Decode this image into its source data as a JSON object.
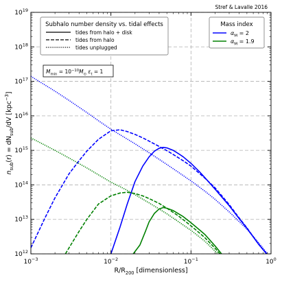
{
  "credit": "Stref & Lavalle 2016",
  "chart_data": {
    "type": "line",
    "title": "",
    "xlabel_parts": [
      {
        "t": "R/R",
        "s": "n"
      },
      {
        "t": "200",
        "s": "sub"
      },
      {
        "t": " [dimensionless]",
        "s": "n"
      }
    ],
    "ylabel_parts": [
      {
        "t": "n",
        "s": "i"
      },
      {
        "t": "sub",
        "s": "sub"
      },
      {
        "t": "(r) = dN",
        "s": "n"
      },
      {
        "t": "sub",
        "s": "sub"
      },
      {
        "t": "/dV [kpc",
        "s": "n"
      },
      {
        "t": "−3",
        "s": "sup"
      },
      {
        "t": "]",
        "s": "n"
      }
    ],
    "xscale": "log",
    "yscale": "log",
    "xlim": [
      0.001,
      1
    ],
    "ylim": [
      1000000000000.0,
      1e+19
    ],
    "grid": true,
    "x_ticks": [
      {
        "value": 0.001,
        "base": "10",
        "exp": "−3"
      },
      {
        "value": 0.01,
        "base": "10",
        "exp": "−2"
      },
      {
        "value": 0.1,
        "base": "10",
        "exp": "−1"
      },
      {
        "value": 1,
        "base": "10",
        "exp": "0"
      }
    ],
    "y_ticks": [
      {
        "value": 1000000000000.0,
        "base": "10",
        "exp": "12"
      },
      {
        "value": 10000000000000.0,
        "base": "10",
        "exp": "13"
      },
      {
        "value": 100000000000000.0,
        "base": "10",
        "exp": "14"
      },
      {
        "value": 1000000000000000.0,
        "base": "10",
        "exp": "15"
      },
      {
        "value": 1e+16,
        "base": "10",
        "exp": "16"
      },
      {
        "value": 1e+17,
        "base": "10",
        "exp": "17"
      },
      {
        "value": 1e+18,
        "base": "10",
        "exp": "18"
      },
      {
        "value": 1e+19,
        "base": "10",
        "exp": "19"
      }
    ],
    "legend_tides": {
      "placement": "top-left",
      "title": "Subhalo number density vs. tidal effects",
      "entries": [
        {
          "label": "tides from halo + disk",
          "dash": "solid"
        },
        {
          "label": "tides from halo",
          "dash": "dashed"
        },
        {
          "label": "tides unplugged",
          "dash": "dotted"
        }
      ]
    },
    "legend_mass": {
      "placement": "top-right",
      "title": "Mass index",
      "entries": [
        {
          "symbol": "α",
          "sub": "M",
          "value": " = 2",
          "color": "#0000ff"
        },
        {
          "symbol": "α",
          "sub": "M",
          "value": " = 1.9",
          "color": "#008000"
        }
      ]
    },
    "annotation": {
      "parts": [
        {
          "t": "M",
          "s": "i"
        },
        {
          "t": "min",
          "s": "sub"
        },
        {
          "t": " = 10",
          "s": "n"
        },
        {
          "t": "−10",
          "s": "sup"
        },
        {
          "t": "M",
          "s": "i"
        },
        {
          "t": "⊙",
          "s": "sub"
        },
        {
          "t": "   ε",
          "s": "i"
        },
        {
          "t": "t",
          "s": "sub"
        },
        {
          "t": " = 1",
          "s": "n"
        }
      ]
    },
    "series": [
      {
        "key": "blue_solid",
        "color": "#0000ff",
        "dash": "solid",
        "x": [
          0.01,
          0.013,
          0.016,
          0.02,
          0.025,
          0.03,
          0.035,
          0.04,
          0.045,
          0.05,
          0.06,
          0.07,
          0.08,
          0.1,
          0.13,
          0.15,
          0.2,
          0.3,
          0.4,
          0.5,
          0.7,
          1.0
        ],
        "y": [
          1000000000000.0,
          6000000000000.0,
          28000000000000.0,
          125000000000000.0,
          350000000000000.0,
          650000000000000.0,
          950000000000000.0,
          1150000000000000.0,
          1220000000000000.0,
          1180000000000000.0,
          1000000000000000.0,
          800000000000000.0,
          650000000000000.0,
          420000000000000.0,
          230000000000000.0,
          160000000000000.0,
          75000000000000.0,
          25000000000000.0,
          10500000000000.0,
          5500000000000.0,
          1900000000000.0,
          700000000000.0
        ]
      },
      {
        "key": "blue_dashed",
        "color": "#0000ff",
        "dash": "dashed",
        "x": [
          0.001,
          0.0015,
          0.002,
          0.003,
          0.004,
          0.005,
          0.007,
          0.01,
          0.013,
          0.016,
          0.02,
          0.025,
          0.03,
          0.04,
          0.05,
          0.06,
          0.08,
          0.1,
          0.15,
          0.2,
          0.3,
          0.4,
          0.5,
          0.7,
          1.0
        ],
        "y": [
          1500000000000.0,
          11000000000000.0,
          42000000000000.0,
          210000000000000.0,
          500000000000000.0,
          950000000000000.0,
          2100000000000000.0,
          3700000000000000.0,
          3950000000000000.0,
          3500000000000000.0,
          2900000000000000.0,
          2300000000000000.0,
          1850000000000000.0,
          1300000000000000.0,
          980000000000000.0,
          760000000000000.0,
          500000000000000.0,
          350000000000000.0,
          155000000000000.0,
          82000000000000.0,
          27000000000000.0,
          11000000000000.0,
          5700000000000.0,
          1900000000000.0,
          700000000000.0
        ]
      },
      {
        "key": "blue_dotted",
        "color": "#0000ff",
        "dash": "dotted",
        "x": [
          0.001,
          0.002,
          0.003,
          0.005,
          0.007,
          0.01,
          0.02,
          0.03,
          0.04,
          0.05,
          0.07,
          0.1,
          0.15,
          0.2,
          0.3,
          0.5,
          0.7,
          1.0
        ],
        "y": [
          1.4e+17,
          5.2e+16,
          2.8e+16,
          1.25e+16,
          7200000000000000.0,
          4100000000000000.0,
          1550000000000000.0,
          850000000000000.0,
          550000000000000.0,
          390000000000000.0,
          230000000000000.0,
          130000000000000.0,
          65000000000000.0,
          38000000000000.0,
          16500000000000.0,
          5200000000000.0,
          2100000000000.0,
          750000000000.0
        ]
      },
      {
        "key": "green_solid",
        "color": "#008000",
        "dash": "solid",
        "x": [
          0.019,
          0.023,
          0.027,
          0.03,
          0.035,
          0.04,
          0.045,
          0.05,
          0.06,
          0.08,
          0.1,
          0.13,
          0.15,
          0.2,
          0.25
        ],
        "y": [
          1000000000000.0,
          1800000000000.0,
          4500000000000.0,
          8500000000000.0,
          15000000000000.0,
          20000000000000.0,
          22000000000000.0,
          21000000000000.0,
          18000000000000.0,
          12000000000000.0,
          8000000000000.0,
          4800000000000.0,
          3600000000000.0,
          1700000000000.0,
          900000000000.0
        ]
      },
      {
        "key": "green_dashed",
        "color": "#008000",
        "dash": "dashed",
        "x": [
          0.0027,
          0.003,
          0.004,
          0.005,
          0.007,
          0.01,
          0.013,
          0.016,
          0.02,
          0.025,
          0.03,
          0.04,
          0.05,
          0.07,
          0.1,
          0.13,
          0.15,
          0.2,
          0.25
        ],
        "y": [
          1000000000000.0,
          1500000000000.0,
          4500000000000.0,
          10000000000000.0,
          28000000000000.0,
          48000000000000.0,
          58000000000000.0,
          61000000000000.0,
          56000000000000.0,
          48000000000000.0,
          40000000000000.0,
          29000000000000.0,
          21000000000000.0,
          12500000000000.0,
          6500000000000.0,
          3900000000000.0,
          2900000000000.0,
          1450000000000.0,
          800000000000.0
        ]
      },
      {
        "key": "green_dotted",
        "color": "#008000",
        "dash": "dotted",
        "x": [
          0.001,
          0.002,
          0.003,
          0.005,
          0.007,
          0.01,
          0.015,
          0.02,
          0.03,
          0.04,
          0.05,
          0.07,
          0.1,
          0.13,
          0.15,
          0.2,
          0.25
        ],
        "y": [
          2300000000000000.0,
          1000000000000000.0,
          600000000000000.0,
          310000000000000.0,
          195000000000000.0,
          120000000000000.0,
          75000000000000.0,
          52000000000000.0,
          30000000000000.0,
          20000000000000.0,
          14500000000000.0,
          8500000000000.0,
          4800000000000.0,
          3000000000000.0,
          2300000000000.0,
          1200000000000.0,
          750000000000.0
        ]
      }
    ]
  }
}
